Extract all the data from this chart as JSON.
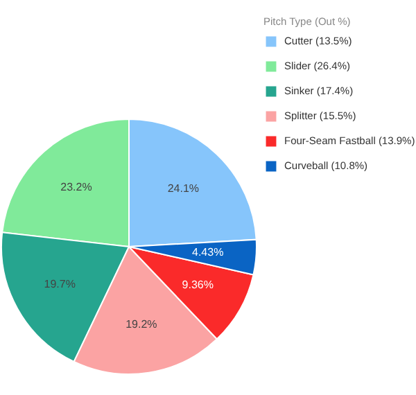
{
  "chart_data": {
    "type": "pie",
    "legend_title": "Pitch Type (Out %)",
    "categories": [
      "Cutter (13.5%)",
      "Slider (26.4%)",
      "Sinker (17.4%)",
      "Splitter (15.5%)",
      "Four-Seam Fastball (13.9%)",
      "Curveball (10.8%)"
    ],
    "values": [
      24.1,
      23.2,
      19.7,
      19.2,
      9.36,
      4.43
    ],
    "value_labels": [
      "24.1%",
      "23.2%",
      "19.7%",
      "19.2%",
      "9.36%",
      "4.43%"
    ],
    "colors": [
      "#86c5fb",
      "#80ea9a",
      "#26a58f",
      "#fba3a3",
      "#fa2a2a",
      "#0a64c4"
    ],
    "legend": "top right"
  }
}
